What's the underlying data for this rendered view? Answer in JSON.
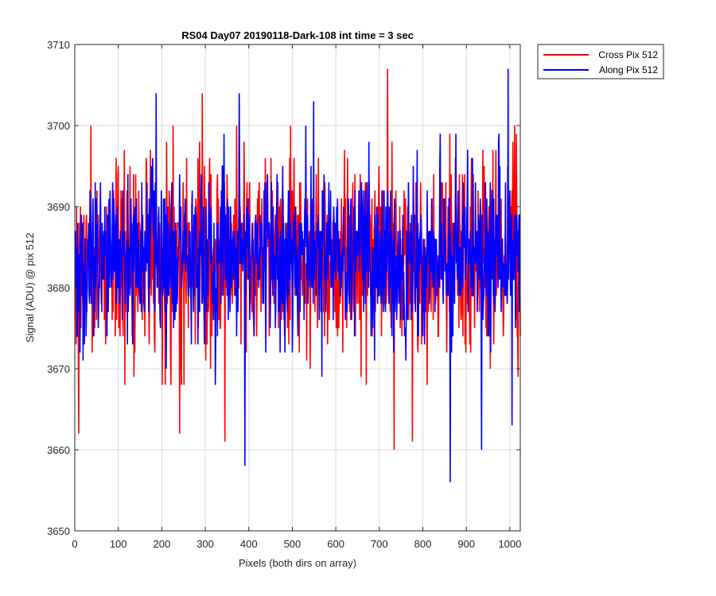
{
  "chart_data": {
    "type": "line",
    "title": "RS04 Day07 20190118-Dark-108 int time = 3 sec",
    "xlabel": "Pixels (both dirs on array)",
    "ylabel": "Signal (ADU) @ pix 512",
    "xlim": [
      0,
      1024
    ],
    "ylim": [
      3650,
      3710
    ],
    "xticks": [
      0,
      100,
      200,
      300,
      400,
      500,
      600,
      700,
      800,
      900,
      1000
    ],
    "yticks": [
      3650,
      3660,
      3670,
      3680,
      3690,
      3700,
      3710
    ],
    "grid": true,
    "legend_position": "outside-top-right",
    "series": [
      {
        "name": "Cross Pix 512",
        "color": "#ff0000",
        "mean": 3684,
        "std": 6,
        "n_points": 1024,
        "extremes": [
          [
            8,
            3662
          ],
          [
            240,
            3662
          ],
          [
            292,
            3704
          ],
          [
            344,
            3661
          ],
          [
            718,
            3707
          ],
          [
            733,
            3660
          ],
          [
            775,
            3661
          ],
          [
            1018,
            3669
          ]
        ]
      },
      {
        "name": "Along Pix 512",
        "color": "#0000ff",
        "mean": 3684,
        "std": 5,
        "n_points": 1024,
        "extremes": [
          [
            186,
            3704
          ],
          [
            377,
            3704
          ],
          [
            390,
            3658
          ],
          [
            548,
            3703
          ],
          [
            862,
            3656
          ],
          [
            934,
            3660
          ],
          [
            995,
            3707
          ],
          [
            1004,
            3663
          ]
        ]
      }
    ]
  }
}
